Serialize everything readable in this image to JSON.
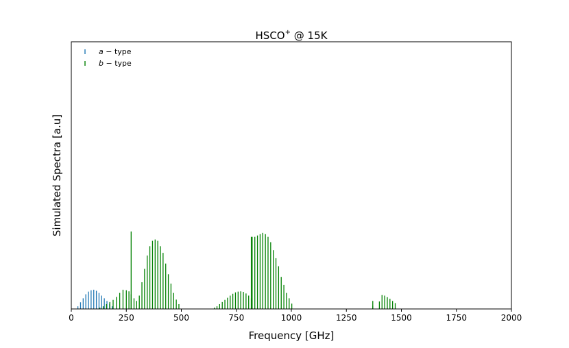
{
  "chart_data": {
    "type": "bar",
    "title": "HSCO⁺ @ 15K",
    "title_main": "HSCO",
    "title_sup": "+",
    "title_rest": " @ 15K",
    "xlabel": "Frequency [GHz]",
    "ylabel": "Simulated Spectra [a.u]",
    "xlim": [
      0,
      2000
    ],
    "ylim": [
      0,
      1
    ],
    "y_ticks_shown": false,
    "grid": false,
    "legend_position": "top-left",
    "x_ticks": [
      0,
      250,
      500,
      750,
      1000,
      1250,
      1500,
      1750,
      2000
    ],
    "x_tick_labels": [
      "0",
      "250",
      "500",
      "750",
      "1000",
      "1250",
      "1500",
      "1750",
      "2000"
    ],
    "colors": {
      "a_type": "#1f77b4",
      "b_type": "#008000"
    },
    "series": [
      {
        "name": "a−type",
        "legend_label_italic": "a",
        "legend_label_rest": " − type",
        "color": "#1f77b4",
        "x": [
          30,
          42,
          54,
          66,
          78,
          90,
          102,
          114,
          126,
          138,
          150,
          162,
          174,
          186
        ],
        "values": [
          0.01,
          0.025,
          0.04,
          0.055,
          0.065,
          0.07,
          0.072,
          0.068,
          0.06,
          0.05,
          0.04,
          0.03,
          0.02,
          0.01
        ]
      },
      {
        "name": "b−type",
        "legend_label_italic": "b",
        "legend_label_rest": " − type",
        "color": "#008000",
        "x": [
          130,
          145,
          160,
          175,
          190,
          205,
          220,
          235,
          250,
          262,
          272,
          285,
          297,
          309,
          321,
          333,
          345,
          357,
          369,
          381,
          393,
          405,
          417,
          429,
          441,
          453,
          465,
          477,
          489,
          650,
          662,
          674,
          686,
          698,
          710,
          722,
          734,
          746,
          758,
          770,
          782,
          794,
          806,
          818,
          822,
          834,
          846,
          858,
          870,
          882,
          894,
          906,
          918,
          930,
          942,
          954,
          966,
          978,
          990,
          1002,
          1370,
          1400,
          1412,
          1424,
          1436,
          1448,
          1460,
          1472
        ],
        "values": [
          0.005,
          0.01,
          0.018,
          0.026,
          0.034,
          0.045,
          0.06,
          0.072,
          0.07,
          0.066,
          0.055,
          0.04,
          0.03,
          0.05,
          0.1,
          0.15,
          0.2,
          0.235,
          0.255,
          0.26,
          0.255,
          0.235,
          0.21,
          0.17,
          0.13,
          0.095,
          0.06,
          0.035,
          0.018,
          0.005,
          0.01,
          0.018,
          0.026,
          0.034,
          0.042,
          0.05,
          0.057,
          0.062,
          0.065,
          0.066,
          0.064,
          0.058,
          0.05,
          0.04,
          0.27,
          0.27,
          0.275,
          0.28,
          0.285,
          0.28,
          0.27,
          0.25,
          0.22,
          0.19,
          0.16,
          0.12,
          0.09,
          0.06,
          0.04,
          0.02,
          0.012,
          0.028,
          0.052,
          0.05,
          0.044,
          0.038,
          0.03,
          0.022
        ],
        "spikes": [
          {
            "x": 272,
            "value": 0.29
          },
          {
            "x": 818,
            "value": 0.27
          },
          {
            "x": 1370,
            "value": 0.03
          }
        ]
      }
    ]
  }
}
